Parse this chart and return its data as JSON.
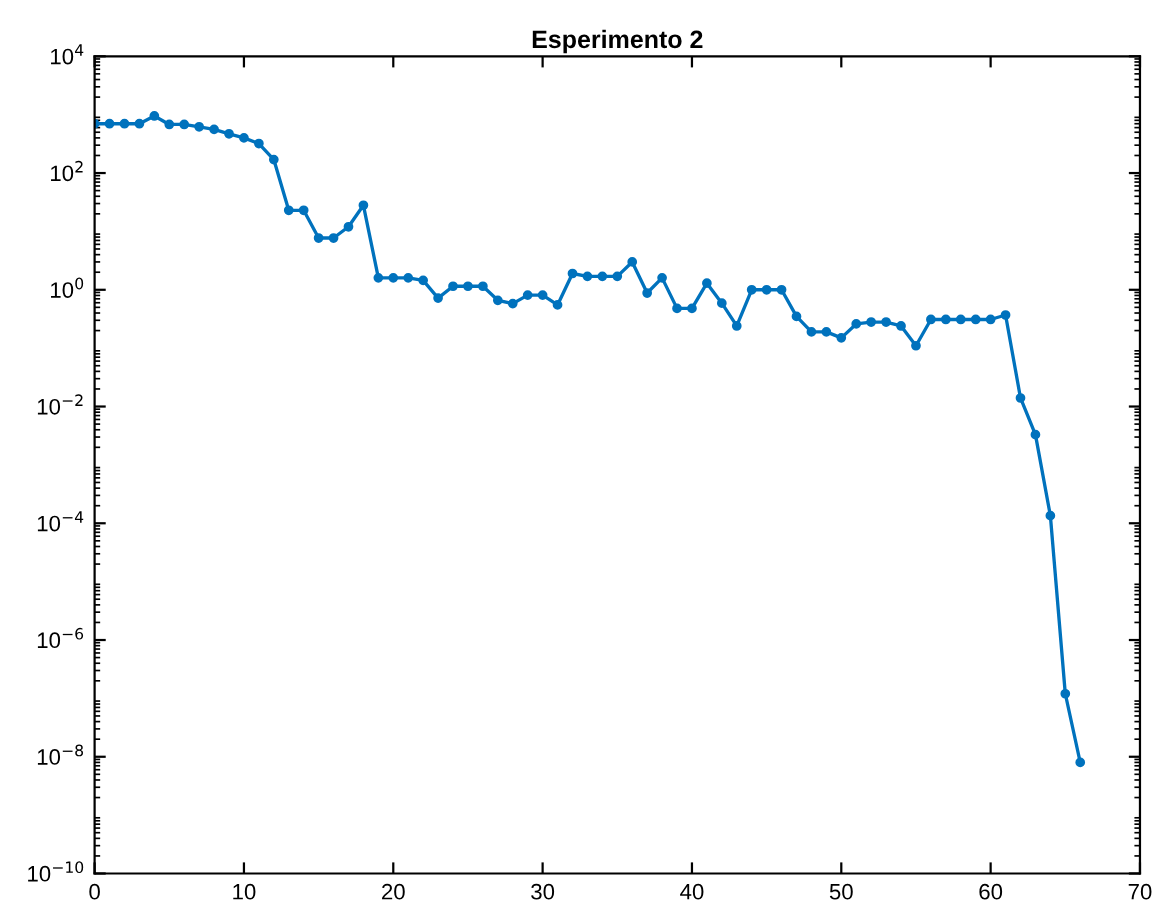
{
  "chart_data": {
    "type": "line",
    "title": "Esperimento 2",
    "x": [
      0,
      1,
      2,
      3,
      4,
      5,
      6,
      7,
      8,
      9,
      10,
      11,
      12,
      13,
      14,
      15,
      16,
      17,
      18,
      19,
      20,
      21,
      22,
      23,
      24,
      25,
      26,
      27,
      28,
      29,
      30,
      31,
      32,
      33,
      34,
      35,
      36,
      37,
      38,
      39,
      40,
      41,
      42,
      43,
      44,
      45,
      46,
      47,
      48,
      49,
      50,
      51,
      52,
      53,
      54,
      55,
      56,
      57,
      58,
      59,
      60,
      61,
      62,
      63,
      64,
      65,
      66
    ],
    "series": [
      {
        "color": "#0072bd",
        "values": [
          700,
          700,
          700,
          700,
          950,
          680,
          680,
          620,
          560,
          470,
          400,
          320,
          170,
          23,
          23,
          7.7,
          7.7,
          12,
          28,
          1.6,
          1.6,
          1.6,
          1.45,
          0.72,
          1.15,
          1.15,
          1.15,
          0.66,
          0.58,
          0.81,
          0.81,
          0.55,
          1.9,
          1.7,
          1.7,
          1.7,
          3.0,
          0.88,
          1.6,
          0.48,
          0.48,
          1.3,
          0.59,
          0.24,
          1.0,
          1.0,
          1.0,
          0.35,
          0.19,
          0.19,
          0.15,
          0.26,
          0.28,
          0.28,
          0.24,
          0.11,
          0.31,
          0.31,
          0.31,
          0.31,
          0.31,
          0.37,
          0.014,
          0.0033,
          0.000135,
          1.2e-07,
          8e-09
        ]
      }
    ],
    "log": "y",
    "marker": "circle",
    "line_style": "solid",
    "grid": false,
    "legend": false,
    "xlim": [
      0,
      70
    ],
    "xticks": [
      0,
      10,
      20,
      30,
      40,
      50,
      60,
      70
    ],
    "ylim": [
      1e-10,
      10000
    ],
    "yticks": [
      {
        "value": 1e-10,
        "label": "10$^{−10}$"
      },
      {
        "value": 1e-08,
        "label": "10$^{−8}$"
      },
      {
        "value": 1e-06,
        "label": "10$^{−6}$"
      },
      {
        "value": 0.0001,
        "label": "10$^{−4}$"
      },
      {
        "value": 0.01,
        "label": "10$^{−2}$"
      },
      {
        "value": 1,
        "label": "10$^{0}$"
      },
      {
        "value": 100,
        "label": "10$^{2}$"
      },
      {
        "value": 10000,
        "label": "10$^{4}$"
      }
    ]
  }
}
